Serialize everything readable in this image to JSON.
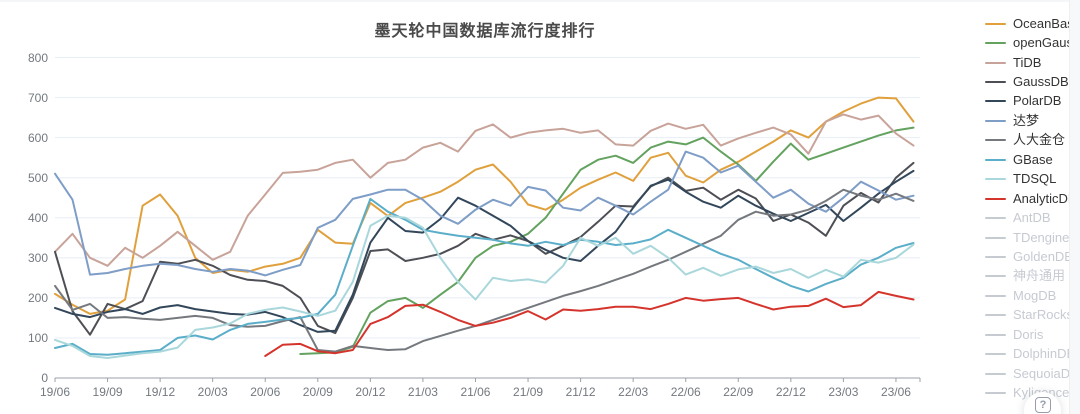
{
  "title": "墨天轮中国数据库流行度排行",
  "help_button": {
    "icon": "?"
  },
  "y_axis": {
    "labels": [
      0,
      100,
      200,
      300,
      400,
      500,
      600,
      700,
      800
    ]
  },
  "x_axis": {
    "labels": [
      "19/06",
      "19/09",
      "19/12",
      "20/03",
      "20/06",
      "20/09",
      "20/12",
      "21/03",
      "21/06",
      "21/09",
      "21/12",
      "22/03",
      "22/06",
      "22/09",
      "22/12",
      "23/03",
      "23/06"
    ]
  },
  "colors": {
    "disabled": "#c6cad1",
    "grid": "#e7eef6",
    "axis": "#9aa1a8",
    "title": "#4a4a4a",
    "legend_text": "#333333"
  },
  "chart_data": {
    "type": "line",
    "title": "墨天轮中国数据库流行度排行",
    "ylim": [
      0,
      800
    ],
    "y_step": 100,
    "grid": true,
    "legend_position": "right",
    "x": [
      "19/06",
      "19/07",
      "19/08",
      "19/09",
      "19/10",
      "19/11",
      "19/12",
      "20/01",
      "20/02",
      "20/03",
      "20/04",
      "20/05",
      "20/06",
      "20/07",
      "20/08",
      "20/09",
      "20/10",
      "20/11",
      "20/12",
      "21/01",
      "21/02",
      "21/03",
      "21/04",
      "21/05",
      "21/06",
      "21/07",
      "21/08",
      "21/09",
      "21/10",
      "21/11",
      "21/12",
      "22/01",
      "22/02",
      "22/03",
      "22/04",
      "22/05",
      "22/06",
      "22/07",
      "22/08",
      "22/09",
      "22/10",
      "22/11",
      "22/12",
      "23/01",
      "23/02",
      "23/03",
      "23/04",
      "23/05",
      "23/06",
      "23/07"
    ],
    "series": [
      {
        "name": "OceanBase",
        "color": "#e0a03c",
        "enabled": true,
        "values": [
          210,
          183,
          160,
          168,
          196,
          430,
          458,
          405,
          300,
          262,
          270,
          265,
          278,
          285,
          300,
          370,
          338,
          335,
          437,
          404,
          437,
          450,
          465,
          490,
          520,
          533,
          490,
          433,
          420,
          445,
          475,
          495,
          513,
          492,
          550,
          562,
          505,
          488,
          520,
          540,
          565,
          590,
          618,
          600,
          640,
          665,
          685,
          700,
          698,
          640
        ]
      },
      {
        "name": "openGauss",
        "color": "#63a25f",
        "enabled": true,
        "values": [
          null,
          null,
          null,
          null,
          null,
          null,
          null,
          null,
          null,
          null,
          null,
          null,
          null,
          null,
          60,
          62,
          64,
          78,
          163,
          192,
          200,
          175,
          208,
          240,
          300,
          330,
          340,
          360,
          400,
          460,
          520,
          545,
          555,
          537,
          575,
          590,
          583,
          600,
          565,
          533,
          492,
          540,
          585,
          545,
          560,
          575,
          590,
          605,
          618,
          625
        ]
      },
      {
        "name": "TiDB",
        "color": "#c8a399",
        "enabled": true,
        "values": [
          315,
          360,
          300,
          280,
          325,
          300,
          330,
          365,
          330,
          295,
          315,
          405,
          458,
          512,
          515,
          520,
          537,
          545,
          500,
          537,
          545,
          575,
          587,
          565,
          617,
          633,
          600,
          612,
          618,
          622,
          612,
          618,
          583,
          580,
          617,
          635,
          622,
          632,
          580,
          598,
          612,
          625,
          608,
          560,
          640,
          658,
          645,
          655,
          610,
          580
        ]
      },
      {
        "name": "GaussDB",
        "color": "#4d4f55",
        "enabled": true,
        "values": [
          315,
          167,
          108,
          185,
          172,
          192,
          290,
          285,
          295,
          280,
          257,
          245,
          242,
          230,
          200,
          130,
          112,
          200,
          317,
          321,
          292,
          300,
          310,
          330,
          360,
          345,
          356,
          342,
          310,
          330,
          352,
          390,
          430,
          428,
          478,
          500,
          467,
          475,
          445,
          470,
          448,
          392,
          408,
          388,
          355,
          430,
          462,
          438,
          500,
          537
        ]
      },
      {
        "name": "PolarDB",
        "color": "#33475b",
        "enabled": true,
        "values": [
          175,
          160,
          152,
          165,
          172,
          160,
          176,
          182,
          172,
          166,
          160,
          158,
          165,
          152,
          132,
          115,
          118,
          208,
          338,
          400,
          367,
          363,
          397,
          450,
          430,
          405,
          380,
          342,
          320,
          300,
          292,
          330,
          365,
          425,
          480,
          495,
          465,
          440,
          425,
          455,
          430,
          410,
          392,
          412,
          432,
          392,
          425,
          460,
          490,
          517
        ]
      },
      {
        "name": "达梦",
        "color": "#7e9dc7",
        "enabled": true,
        "values": [
          510,
          445,
          258,
          262,
          272,
          280,
          285,
          282,
          272,
          265,
          272,
          268,
          256,
          270,
          282,
          375,
          395,
          447,
          458,
          470,
          470,
          445,
          405,
          385,
          420,
          445,
          430,
          477,
          468,
          425,
          418,
          450,
          430,
          408,
          440,
          470,
          565,
          550,
          513,
          530,
          490,
          450,
          470,
          435,
          415,
          450,
          490,
          468,
          445,
          455
        ]
      },
      {
        "name": "人大金仓",
        "color": "#75797e",
        "enabled": true,
        "values": [
          230,
          170,
          185,
          150,
          152,
          148,
          145,
          150,
          155,
          150,
          132,
          128,
          130,
          142,
          152,
          70,
          66,
          80,
          75,
          70,
          72,
          92,
          105,
          118,
          130,
          145,
          160,
          175,
          190,
          205,
          217,
          230,
          245,
          260,
          278,
          295,
          315,
          335,
          355,
          395,
          415,
          405,
          408,
          420,
          442,
          470,
          455,
          445,
          460,
          442
        ]
      },
      {
        "name": "GBase",
        "color": "#5baec9",
        "enabled": true,
        "values": [
          75,
          85,
          60,
          58,
          62,
          66,
          70,
          100,
          106,
          96,
          120,
          135,
          140,
          146,
          150,
          160,
          208,
          330,
          447,
          415,
          395,
          370,
          362,
          355,
          350,
          345,
          336,
          330,
          340,
          332,
          345,
          340,
          332,
          336,
          346,
          370,
          350,
          330,
          310,
          295,
          272,
          250,
          230,
          216,
          235,
          250,
          283,
          300,
          325,
          337
        ]
      },
      {
        "name": "TDSQL",
        "color": "#a9d7db",
        "enabled": true,
        "values": [
          95,
          80,
          55,
          50,
          56,
          62,
          66,
          76,
          120,
          126,
          136,
          160,
          170,
          176,
          166,
          155,
          168,
          240,
          380,
          405,
          400,
          375,
          300,
          240,
          196,
          250,
          242,
          246,
          238,
          280,
          350,
          330,
          350,
          310,
          330,
          300,
          258,
          275,
          255,
          271,
          278,
          262,
          272,
          250,
          270,
          253,
          295,
          288,
          300,
          333
        ]
      },
      {
        "name": "AnalyticDB",
        "color": "#d5342c",
        "enabled": true,
        "values": [
          null,
          null,
          null,
          null,
          null,
          null,
          null,
          null,
          null,
          null,
          null,
          null,
          55,
          83,
          85,
          67,
          62,
          70,
          135,
          152,
          180,
          183,
          165,
          145,
          130,
          138,
          150,
          167,
          146,
          171,
          168,
          172,
          178,
          178,
          172,
          185,
          200,
          193,
          197,
          200,
          185,
          171,
          178,
          180,
          198,
          177,
          182,
          215,
          205,
          196
        ]
      },
      {
        "name": "AntDB",
        "color": "#c6cad1",
        "enabled": false,
        "values": []
      },
      {
        "name": "TDengine",
        "color": "#c6cad1",
        "enabled": false,
        "values": []
      },
      {
        "name": "GoldenDB",
        "color": "#c6cad1",
        "enabled": false,
        "values": []
      },
      {
        "name": "神舟通用",
        "color": "#c6cad1",
        "enabled": false,
        "values": []
      },
      {
        "name": "MogDB",
        "color": "#c6cad1",
        "enabled": false,
        "values": []
      },
      {
        "name": "StarRocks",
        "color": "#c6cad1",
        "enabled": false,
        "values": []
      },
      {
        "name": "Doris",
        "color": "#c6cad1",
        "enabled": false,
        "values": []
      },
      {
        "name": "DolphinDB",
        "color": "#c6cad1",
        "enabled": false,
        "values": []
      },
      {
        "name": "SequoiaDB",
        "color": "#c6cad1",
        "enabled": false,
        "values": []
      },
      {
        "name": "Kyligence",
        "color": "#c6cad1",
        "enabled": false,
        "values": []
      }
    ]
  }
}
